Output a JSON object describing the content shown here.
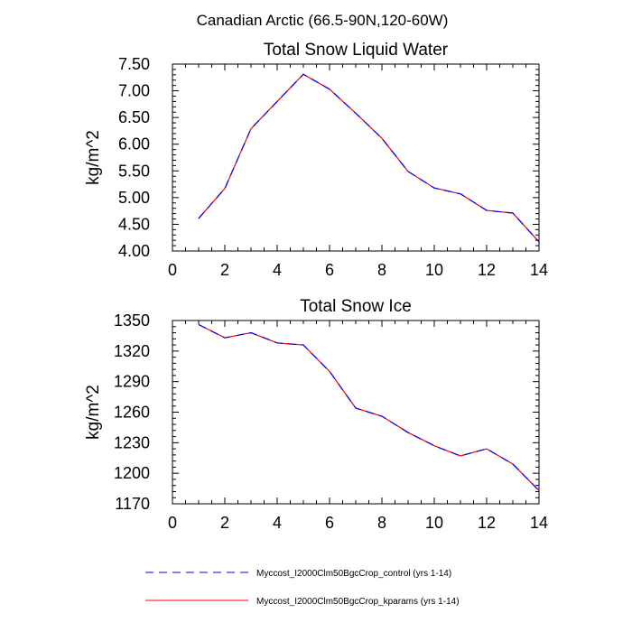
{
  "figure_title": "Canadian Arctic (66.5-90N,120-60W)",
  "legend": {
    "entries": [
      {
        "label": "Myccost_I2000Clm50BgcCrop_control (yrs 1-14)",
        "color": "#0000ff",
        "style": "dashed"
      },
      {
        "label": "Myccost_I2000Clm50BgcCrop_kparams (yrs 1-14)",
        "color": "#ff0000",
        "style": "solid"
      }
    ]
  },
  "chart_data": [
    {
      "type": "line",
      "title": "Total Snow Liquid Water",
      "xlabel": "",
      "ylabel": "kg/m^2",
      "xlim": [
        0,
        14
      ],
      "ylim": [
        4.0,
        7.5
      ],
      "xticks": [
        "0",
        "2",
        "4",
        "6",
        "8",
        "10",
        "12",
        "14"
      ],
      "yticks": [
        "4.00",
        "4.50",
        "5.00",
        "5.50",
        "6.00",
        "6.50",
        "7.00",
        "7.50"
      ],
      "x": [
        1,
        2,
        3,
        4,
        5,
        6,
        7,
        8,
        9,
        10,
        11,
        12,
        13,
        14
      ],
      "series": [
        {
          "name": "Myccost_I2000Clm50BgcCrop_control (yrs 1-14)",
          "color": "#0000ff",
          "style": "dashed",
          "values": [
            4.61,
            5.17,
            6.29,
            6.8,
            7.31,
            7.03,
            6.58,
            6.11,
            5.49,
            5.18,
            5.07,
            4.76,
            4.71,
            4.17
          ]
        },
        {
          "name": "Myccost_I2000Clm50BgcCrop_kparams (yrs 1-14)",
          "color": "#ff0000",
          "style": "solid",
          "values": [
            4.61,
            5.17,
            6.29,
            6.8,
            7.31,
            7.03,
            6.58,
            6.11,
            5.49,
            5.18,
            5.07,
            4.76,
            4.71,
            4.17
          ]
        }
      ]
    },
    {
      "type": "line",
      "title": "Total Snow Ice",
      "xlabel": "",
      "ylabel": "kg/m^2",
      "xlim": [
        0,
        14
      ],
      "ylim": [
        1170,
        1350
      ],
      "xticks": [
        "0",
        "2",
        "4",
        "6",
        "8",
        "10",
        "12",
        "14"
      ],
      "yticks": [
        "1170",
        "1200",
        "1230",
        "1260",
        "1290",
        "1320",
        "1350"
      ],
      "x": [
        1,
        2,
        3,
        4,
        5,
        6,
        7,
        8,
        9,
        10,
        11,
        12,
        13,
        14
      ],
      "series": [
        {
          "name": "Myccost_I2000Clm50BgcCrop_control (yrs 1-14)",
          "color": "#0000ff",
          "style": "dashed",
          "values": [
            1346,
            1333,
            1338,
            1328,
            1326,
            1300,
            1264,
            1256,
            1240,
            1227,
            1217,
            1224,
            1209,
            1183
          ]
        },
        {
          "name": "Myccost_I2000Clm50BgcCrop_kparams (yrs 1-14)",
          "color": "#ff0000",
          "style": "solid",
          "values": [
            1346,
            1333,
            1338,
            1328,
            1326,
            1300,
            1264,
            1256,
            1240,
            1227,
            1217,
            1224,
            1209,
            1183
          ]
        }
      ]
    }
  ]
}
